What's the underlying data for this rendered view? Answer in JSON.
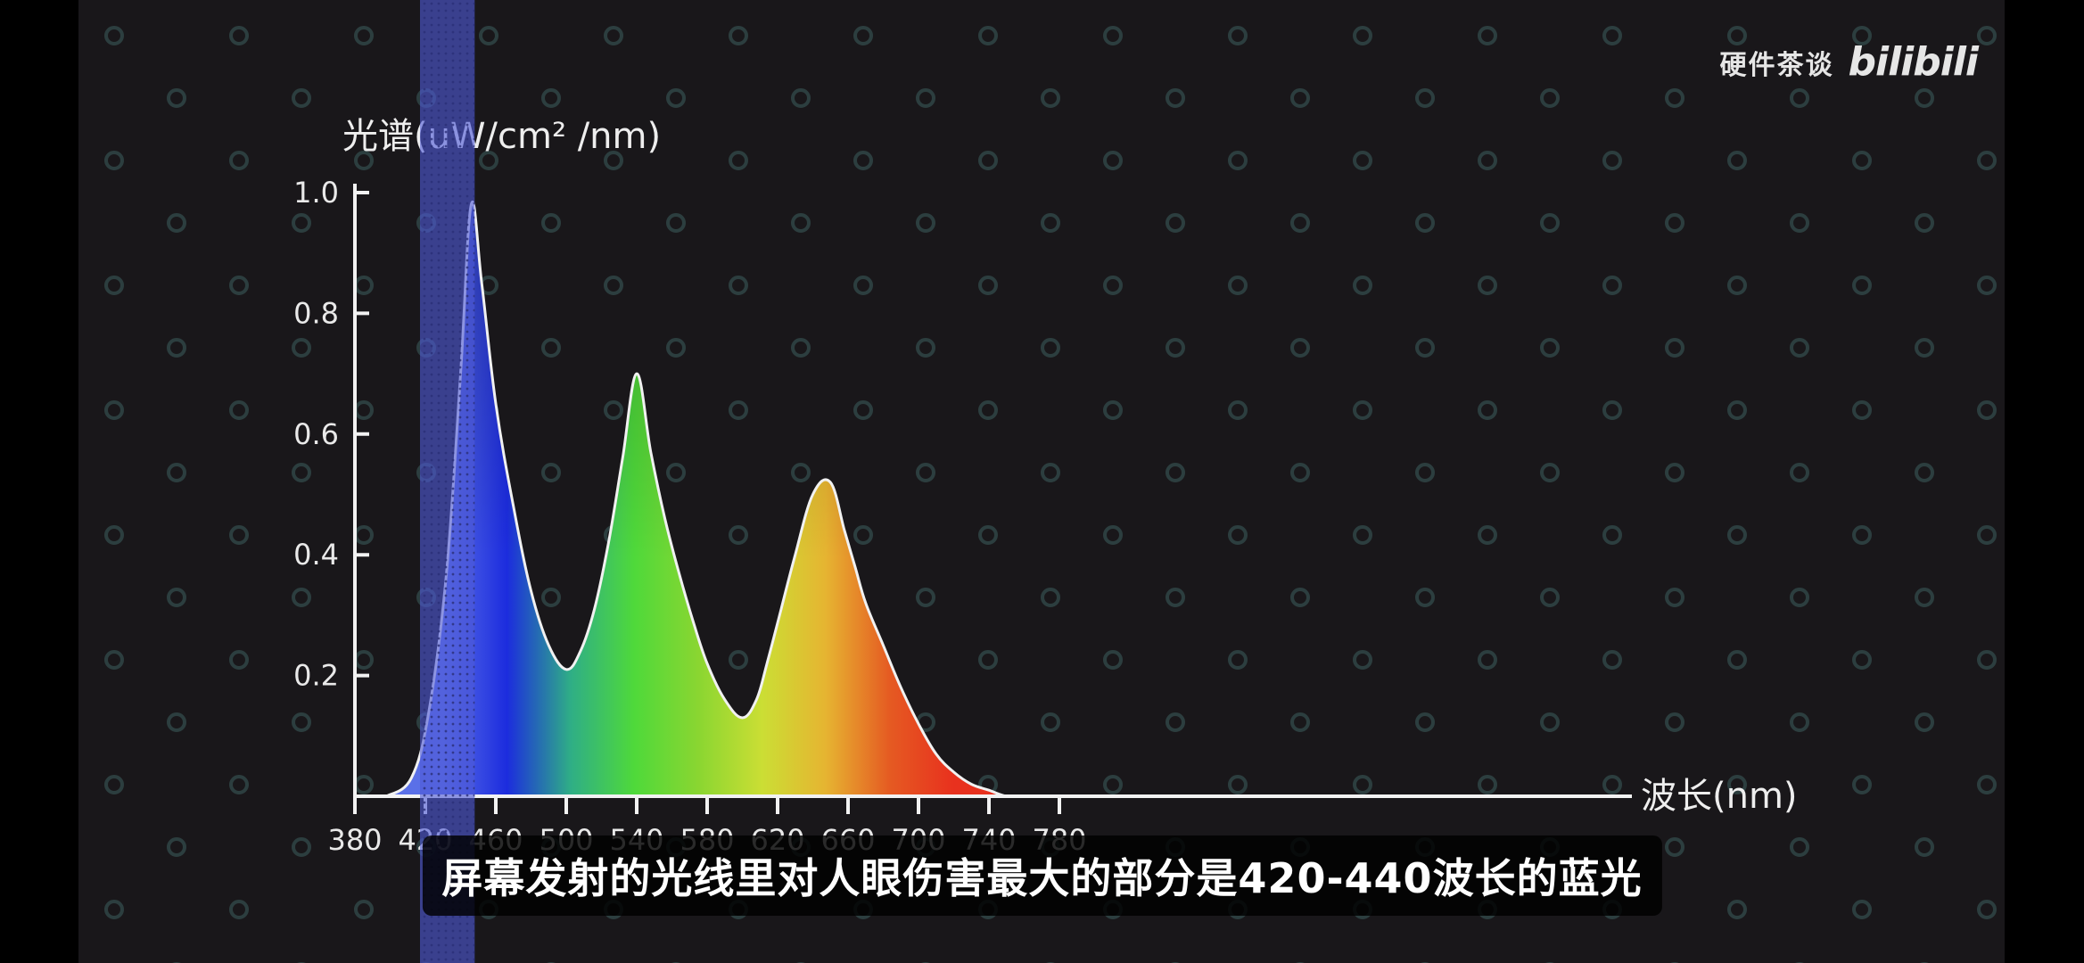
{
  "chart_data": {
    "type": "area",
    "ylabel": "光谱(uW/cm² /nm)",
    "xlabel": "波长(nm)",
    "xlim": [
      380,
      800
    ],
    "ylim": [
      0,
      1.0
    ],
    "x_ticks": [
      380,
      420,
      460,
      500,
      540,
      580,
      620,
      660,
      700,
      740,
      780
    ],
    "y_ticks": [
      0.2,
      0.4,
      0.6,
      0.8,
      1.0
    ],
    "y_tick_labels": [
      "0.2",
      "0.4",
      "0.6",
      "0.8",
      "1.0"
    ],
    "highlight_band": [
      420,
      448
    ],
    "series": [
      {
        "x": [
          398,
          412,
          422,
          432,
          440,
          446,
          452,
          460,
          470,
          480,
          490,
          500,
          508,
          516,
          524,
          532,
          540,
          548,
          556,
          564,
          572,
          580,
          590,
          600,
          608,
          614,
          622,
          630,
          640,
          650,
          658,
          664,
          670,
          680,
          690,
          700,
          710,
          720,
          730,
          740,
          750,
          760
        ],
        "values": [
          0.0,
          0.03,
          0.14,
          0.37,
          0.7,
          0.98,
          0.85,
          0.65,
          0.48,
          0.34,
          0.25,
          0.21,
          0.24,
          0.31,
          0.42,
          0.56,
          0.7,
          0.57,
          0.46,
          0.37,
          0.29,
          0.22,
          0.16,
          0.13,
          0.16,
          0.22,
          0.31,
          0.4,
          0.5,
          0.52,
          0.44,
          0.38,
          0.32,
          0.25,
          0.18,
          0.12,
          0.07,
          0.04,
          0.02,
          0.01,
          0.0,
          0.0
        ]
      }
    ],
    "gradient_colors": [
      "#5a70e8",
      "#1c2cde",
      "#2fae86",
      "#4fd93a",
      "#8ad631",
      "#cbde34",
      "#e6b431",
      "#e55a22",
      "#e8311e"
    ]
  },
  "watermark": {
    "channel": "硬件茶谈",
    "logo": "bilibili"
  },
  "subtitle": "屏幕发射的光线里对人眼伤害最大的部分是420-440波长的蓝光"
}
